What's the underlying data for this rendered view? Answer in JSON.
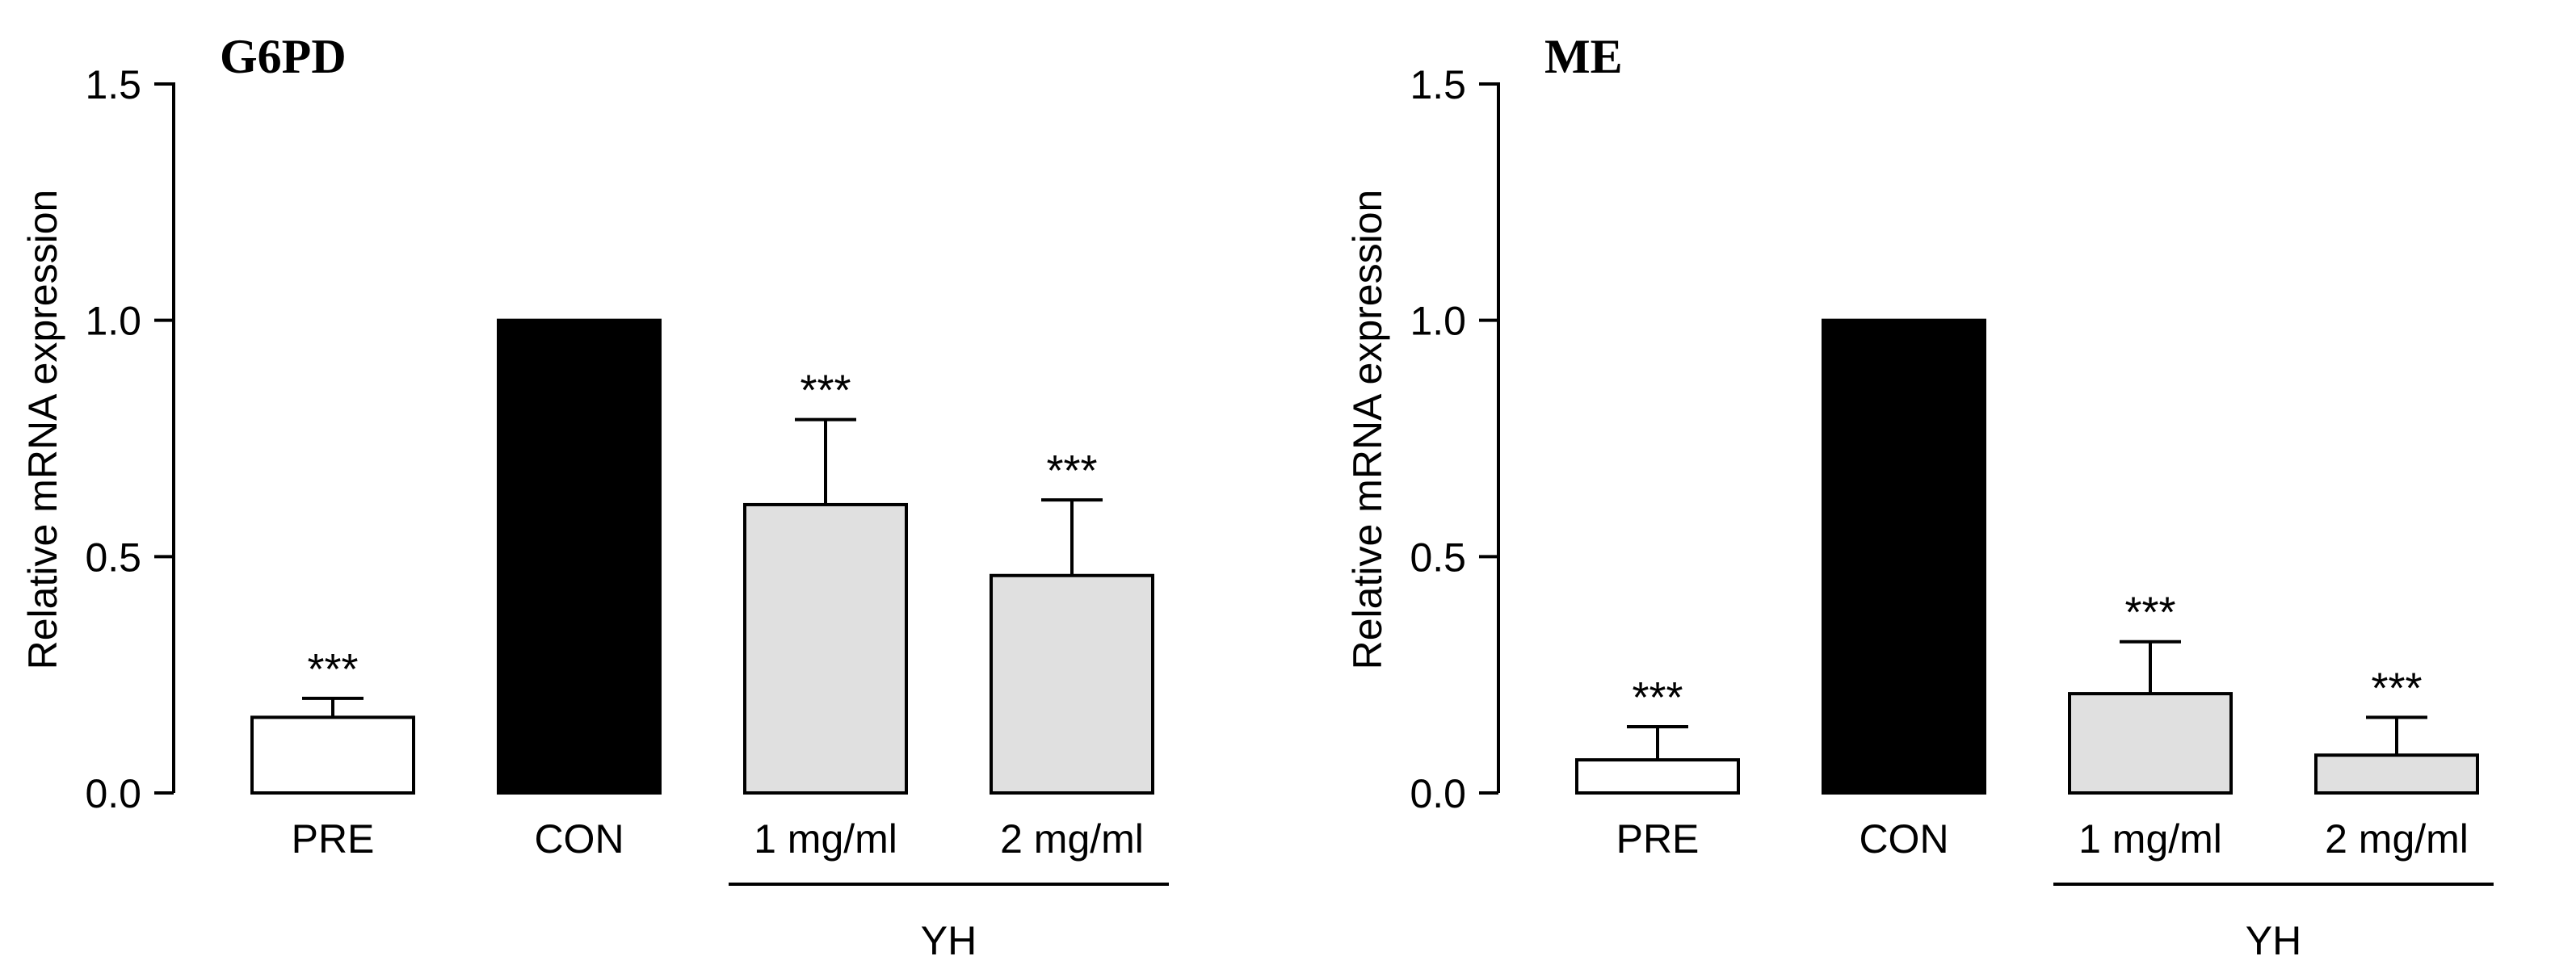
{
  "chart_data": [
    {
      "type": "bar",
      "title": "G6PD",
      "ylabel": "Relative mRNA expression",
      "xlabel": "",
      "ylim": [
        0,
        1.5
      ],
      "yticks": [
        "0.0",
        "0.5",
        "1.0",
        "1.5"
      ],
      "categories": [
        "PRE",
        "CON",
        "1 mg/ml",
        "2 mg/ml"
      ],
      "values": [
        0.16,
        1.0,
        0.61,
        0.46
      ],
      "error": [
        0.04,
        0.0,
        0.18,
        0.16
      ],
      "significance": [
        "***",
        "",
        "***",
        "***"
      ],
      "fill_colors": [
        "#ffffff",
        "#000000",
        "#e0e0e0",
        "#e0e0e0"
      ],
      "group_label": "YH",
      "group_categories": [
        "1 mg/ml",
        "2 mg/ml"
      ]
    },
    {
      "type": "bar",
      "title": "ME",
      "ylabel": "Relative mRNA expression",
      "xlabel": "",
      "ylim": [
        0,
        1.5
      ],
      "yticks": [
        "0.0",
        "0.5",
        "1.0",
        "1.5"
      ],
      "categories": [
        "PRE",
        "CON",
        "1 mg/ml",
        "2 mg/ml"
      ],
      "values": [
        0.07,
        1.0,
        0.21,
        0.08
      ],
      "error": [
        0.07,
        0.0,
        0.11,
        0.08
      ],
      "significance": [
        "***",
        "",
        "***",
        "***"
      ],
      "fill_colors": [
        "#ffffff",
        "#000000",
        "#e0e0e0",
        "#e0e0e0"
      ],
      "group_label": "YH",
      "group_categories": [
        "1 mg/ml",
        "2 mg/ml"
      ]
    }
  ]
}
